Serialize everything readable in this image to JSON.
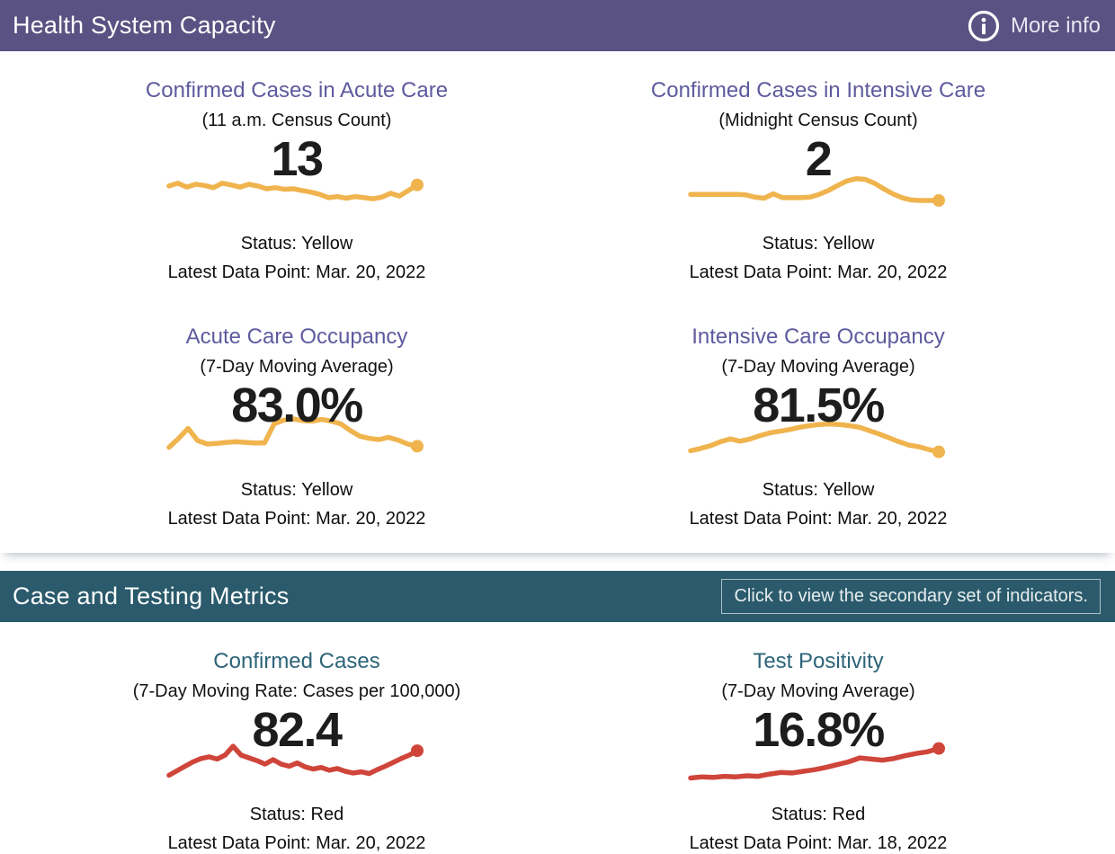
{
  "theme": {
    "purple_header": "#5a5282",
    "teal_header": "#2a5a6b",
    "purple_title": "#5e5a9e",
    "teal_title": "#2d6478",
    "number_text": "#1d1d1d",
    "header_text": "#ffffff"
  },
  "sections": [
    {
      "title": "Health System Capacity",
      "action": {
        "label": "More info",
        "icon": "info-circle-icon"
      }
    },
    {
      "title": "Case and Testing Metrics",
      "action": {
        "label": "Click to view the secondary set of indicators."
      }
    }
  ],
  "sparkline_scale_note": "Sparklines have no axes in the source; values_relative are estimated line heights on a 0-100 relative scale, left to right.",
  "chart_data": [
    {
      "type": "line",
      "title": "Confirmed Cases in Acute Care",
      "subtitle": "(11 a.m. Census Count)",
      "value_label": "13",
      "status": "Yellow",
      "status_label": "Status: Yellow",
      "latest_label": "Latest Data Point: Mar. 20, 2022",
      "latest_date": "Mar. 20, 2022",
      "line_color": "#f0b44e",
      "values_relative": [
        55,
        60,
        53,
        58,
        56,
        52,
        60,
        57,
        53,
        58,
        55,
        50,
        52,
        49,
        50,
        47,
        44,
        40,
        34,
        36,
        33,
        36,
        34,
        32,
        35,
        42,
        37,
        47,
        57
      ]
    },
    {
      "type": "line",
      "title": "Confirmed Cases in Intensive Care",
      "subtitle": "(Midnight Census Count)",
      "value_label": "2",
      "status": "Yellow",
      "status_label": "Status: Yellow",
      "latest_label": "Latest Data Point: Mar. 20, 2022",
      "latest_date": "Mar. 20, 2022",
      "line_color": "#f0b44e",
      "values_relative": [
        40,
        40,
        40,
        40,
        40,
        40,
        39,
        35,
        33,
        41,
        34,
        34,
        34,
        35,
        40,
        47,
        56,
        64,
        68,
        67,
        60,
        50,
        41,
        34,
        30,
        29,
        29,
        29
      ]
    },
    {
      "type": "line",
      "title": "Acute Care Occupancy",
      "subtitle": "(7-Day Moving Average)",
      "value_label": "83.0%",
      "status": "Yellow",
      "status_label": "Status: Yellow",
      "latest_label": "Latest Data Point: Mar. 20, 2022",
      "latest_date": "Mar. 20, 2022",
      "line_color": "#f0b44e",
      "values_relative": [
        28,
        44,
        62,
        40,
        34,
        35,
        37,
        38,
        37,
        36,
        36,
        70,
        77,
        79,
        76,
        75,
        78,
        75,
        70,
        58,
        48,
        44,
        42,
        46,
        41,
        34,
        30
      ]
    },
    {
      "type": "line",
      "title": "Intensive Care Occupancy",
      "subtitle": "(7-Day Moving Average)",
      "value_label": "81.5%",
      "status": "Yellow",
      "status_label": "Status: Yellow",
      "latest_label": "Latest Data Point: Mar. 20, 2022",
      "latest_date": "Mar. 20, 2022",
      "line_color": "#f0b44e",
      "values_relative": [
        22,
        26,
        31,
        38,
        43,
        39,
        43,
        49,
        54,
        57,
        60,
        64,
        67,
        69,
        70,
        69,
        67,
        64,
        58,
        52,
        45,
        38,
        32,
        29,
        24,
        20
      ]
    },
    {
      "type": "line",
      "title": "Confirmed Cases",
      "subtitle": "(7-Day Moving Rate: Cases per 100,000)",
      "value_label": "82.4",
      "status": "Red",
      "status_label": "Status: Red",
      "latest_label": "Latest Data Point: Mar. 20, 2022",
      "latest_date": "Mar. 20, 2022",
      "line_color": "#cf453a",
      "values_relative": [
        22,
        30,
        38,
        46,
        52,
        55,
        51,
        58,
        74,
        58,
        53,
        48,
        42,
        50,
        42,
        38,
        44,
        37,
        33,
        36,
        31,
        34,
        29,
        26,
        28,
        25,
        32,
        38,
        45,
        52,
        58,
        66
      ]
    },
    {
      "type": "line",
      "title": "Test Positivity",
      "subtitle": "(7-Day Moving Average)",
      "value_label": "16.8%",
      "status": "Red",
      "status_label": "Status: Red",
      "latest_label": "Latest Data Point: Mar. 18, 2022",
      "latest_date": "Mar. 18, 2022",
      "line_color": "#cf453a",
      "values_relative": [
        17,
        19,
        18,
        20,
        19,
        21,
        20,
        24,
        27,
        26,
        29,
        32,
        36,
        41,
        46,
        53,
        51,
        49,
        52,
        57,
        61,
        64,
        70
      ]
    }
  ]
}
